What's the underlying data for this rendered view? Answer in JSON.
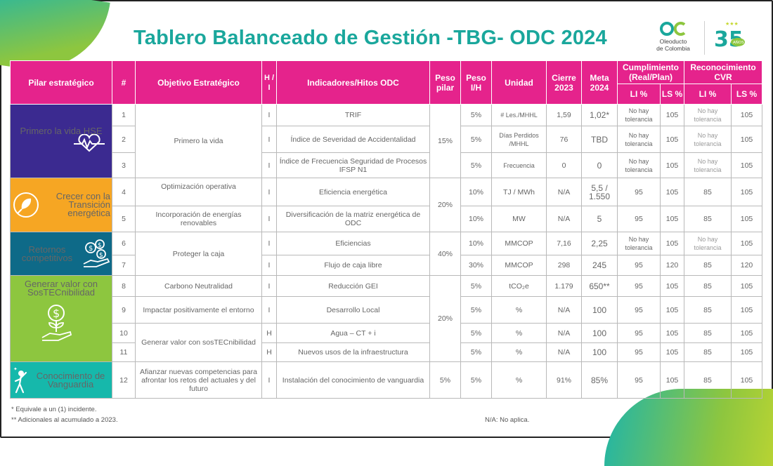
{
  "header": {
    "title": "Tablero Balanceado de Gestión -TBG- ODC 2024",
    "logo_text_line1": "Oleoducto",
    "logo_text_line2": "de Colombia",
    "anniversary_number": "35",
    "anniversary_label": "AÑOS"
  },
  "table": {
    "headers": {
      "pilar": "Pilar estratégico",
      "num": "#",
      "objetivo": "Objetivo Estratégico",
      "hi": "H / I",
      "indicadores": "Indicadores/Hitos ODC",
      "peso_pilar": "Peso pilar",
      "peso_ih": "Peso I/H",
      "unidad": "Unidad",
      "cierre": "Cierre 2023",
      "meta": "Meta 2024",
      "cumplimiento": "Cumplimiento (Real/Plan)",
      "reconocimiento": "Reconocimiento CVR",
      "li1": "LI %",
      "ls1": "LS %",
      "li2": "LI %",
      "ls2": "LS %"
    },
    "pillars": [
      {
        "label": "Primero la vida HSE",
        "icon": "heartbeat-icon",
        "peso": "15%",
        "color": "#3b2a90"
      },
      {
        "label": "Crecer con la Transición energética",
        "icon": "leaf-plug-icon",
        "peso": "20%",
        "color": "#f6a623"
      },
      {
        "label": "Retornos competitivos",
        "icon": "money-hand-icon",
        "peso": "40%",
        "color": "#0e6a88"
      },
      {
        "label": "Generar valor con SosTECnibilidad",
        "icon": "coin-plant-icon",
        "peso": "20%",
        "color": "#8dc63f"
      },
      {
        "label": "Conocimiento de Vanguardia",
        "icon": "person-success-icon",
        "peso": "5%",
        "color": "#16b8ab"
      }
    ],
    "objectives": [
      "Primero la vida",
      "Optimización operativa",
      "Incorporación de energías renovables",
      "Proteger la caja",
      "Carbono Neutralidad",
      "Impactar positivamente el entorno",
      "Generar valor con sosTECnibilidad",
      "Afianzar nuevas competencias para afrontar los retos del actuales y del futuro"
    ],
    "rows": [
      {
        "num": "1",
        "hi": "I",
        "indicador": "TRIF",
        "peso_ih": "5%",
        "unidad": "# Les./MHHL",
        "cierre": "1,59",
        "meta": "1,02*",
        "li1": "No hay tolerancia",
        "ls1": "105",
        "li2": "No hay tolerancia",
        "ls2": "105"
      },
      {
        "num": "2",
        "hi": "I",
        "indicador": "Índice de Severidad de Accidentalidad",
        "peso_ih": "5%",
        "unidad": "Días Perdidos /MHHL",
        "cierre": "76",
        "meta": "TBD",
        "li1": "No hay tolerancia",
        "ls1": "105",
        "li2": "No hay tolerancia",
        "ls2": "105"
      },
      {
        "num": "3",
        "hi": "I",
        "indicador": "Índice de Frecuencia Seguridad de Procesos IFSP N1",
        "peso_ih": "5%",
        "unidad": "Frecuencia",
        "cierre": "0",
        "meta": "0",
        "li1": "No hay tolerancia",
        "ls1": "105",
        "li2": "No hay tolerancia",
        "ls2": "105"
      },
      {
        "num": "4",
        "hi": "I",
        "indicador": "Eficiencia energética",
        "peso_ih": "10%",
        "unidad": "TJ / MWh",
        "cierre": "N/A",
        "meta": "5,5 / 1.550",
        "li1": "95",
        "ls1": "105",
        "li2": "85",
        "ls2": "105"
      },
      {
        "num": "5",
        "hi": "I",
        "indicador": "Diversificación de la matriz energética de ODC",
        "peso_ih": "10%",
        "unidad": "MW",
        "cierre": "N/A",
        "meta": "5",
        "li1": "95",
        "ls1": "105",
        "li2": "85",
        "ls2": "105"
      },
      {
        "num": "6",
        "hi": "I",
        "indicador": "Eficiencias",
        "peso_ih": "10%",
        "unidad": "MMCOP",
        "cierre": "7,16",
        "meta": "2,25",
        "li1": "No hay tolerancia",
        "ls1": "105",
        "li2": "No hay tolerancia",
        "ls2": "105"
      },
      {
        "num": "7",
        "hi": "I",
        "indicador": "Flujo de caja libre",
        "peso_ih": "30%",
        "unidad": "MMCOP",
        "cierre": "298",
        "meta": "245",
        "li1": "95",
        "ls1": "120",
        "li2": "85",
        "ls2": "120"
      },
      {
        "num": "8",
        "hi": "I",
        "indicador": "Reducción GEI",
        "peso_ih": "5%",
        "unidad": "tCO₂e",
        "cierre": "1.179",
        "meta": "650**",
        "li1": "95",
        "ls1": "105",
        "li2": "85",
        "ls2": "105"
      },
      {
        "num": "9",
        "hi": "I",
        "indicador": "Desarrollo Local",
        "peso_ih": "5%",
        "unidad": "%",
        "cierre": "N/A",
        "meta": "100",
        "li1": "95",
        "ls1": "105",
        "li2": "85",
        "ls2": "105"
      },
      {
        "num": "10",
        "hi": "H",
        "indicador": "Agua – CT + i",
        "peso_ih": "5%",
        "unidad": "%",
        "cierre": "N/A",
        "meta": "100",
        "li1": "95",
        "ls1": "105",
        "li2": "85",
        "ls2": "105"
      },
      {
        "num": "11",
        "hi": "H",
        "indicador": "Nuevos usos de la infraestructura",
        "peso_ih": "5%",
        "unidad": "%",
        "cierre": "N/A",
        "meta": "100",
        "li1": "95",
        "ls1": "105",
        "li2": "85",
        "ls2": "105"
      },
      {
        "num": "12",
        "hi": "I",
        "indicador": "Instalación del conocimiento de vanguardia",
        "peso_ih": "5%",
        "unidad": "%",
        "cierre": "91%",
        "meta": "85%",
        "li1": "95",
        "ls1": "105",
        "li2": "85",
        "ls2": "105"
      }
    ]
  },
  "footnotes": {
    "note1": "* Equivale a un (1) incidente.",
    "note2": "** Adicionales al acumulado a 2023.",
    "na": "N/A: No aplica."
  },
  "colors": {
    "title": "#1aa79c",
    "header_bg": "#e5238c",
    "meta_text": "#2b3aa8"
  }
}
